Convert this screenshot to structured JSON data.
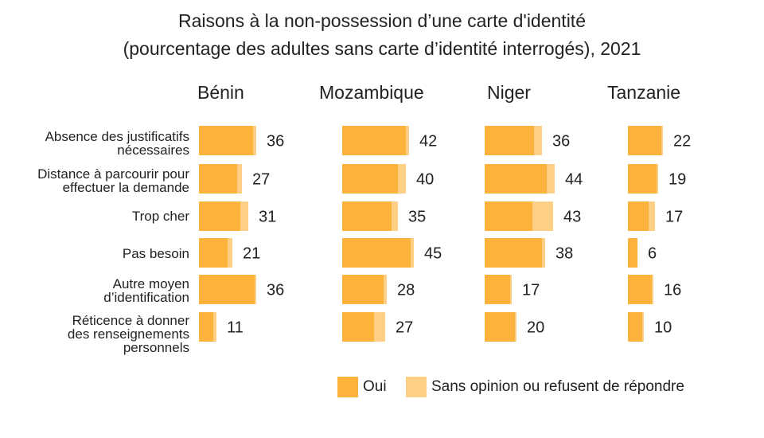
{
  "colors": {
    "oui": "#fbb33c",
    "sans_opinion": "#fdd085"
  },
  "chart_data": {
    "type": "bar",
    "orientation": "horizontal",
    "stacked": true,
    "title": "Raisons à la non-possession d’une carte d'identité",
    "subtitle": "(pourcentage des adultes sans carte d’identité interrogés), 2021",
    "categories": [
      [
        "Absence des justificatifs",
        "nécessaires"
      ],
      [
        "Distance à parcourir pour",
        "effectuer la demande"
      ],
      [
        "Trop cher"
      ],
      [
        "Pas besoin"
      ],
      [
        "Autre moyen",
        "d’identification"
      ],
      [
        "Réticence à donner",
        "des renseignements",
        "personnels"
      ]
    ],
    "legend": [
      "Oui",
      "Sans opinion ou refusent de répondre"
    ],
    "legend_position": "bottom-right",
    "xlim": [
      0,
      45
    ],
    "panels": [
      {
        "name": "Bénin",
        "oui": [
          34,
          24,
          26,
          18,
          35,
          9
        ],
        "sans_opinion": [
          2,
          3,
          5,
          3,
          1,
          2
        ],
        "labels": [
          "36",
          "27",
          "31",
          "21",
          "36",
          "11"
        ]
      },
      {
        "name": "Mozambique",
        "oui": [
          40,
          35,
          31,
          43,
          26,
          20
        ],
        "sans_opinion": [
          2,
          5,
          4,
          2,
          2,
          7
        ],
        "labels": [
          "42",
          "40",
          "35",
          "45",
          "28",
          "27"
        ]
      },
      {
        "name": "Niger",
        "oui": [
          31,
          39,
          30,
          36,
          16,
          19
        ],
        "sans_opinion": [
          5,
          5,
          13,
          2,
          1,
          1
        ],
        "labels": [
          "36",
          "44",
          "43",
          "38",
          "17",
          "20"
        ]
      },
      {
        "name": "Tanzanie",
        "oui": [
          21,
          18,
          13,
          6,
          15,
          9
        ],
        "sans_opinion": [
          1,
          1,
          4,
          0,
          1,
          1
        ],
        "labels": [
          "22",
          "19",
          "17",
          "6",
          "16",
          "10"
        ]
      }
    ]
  }
}
